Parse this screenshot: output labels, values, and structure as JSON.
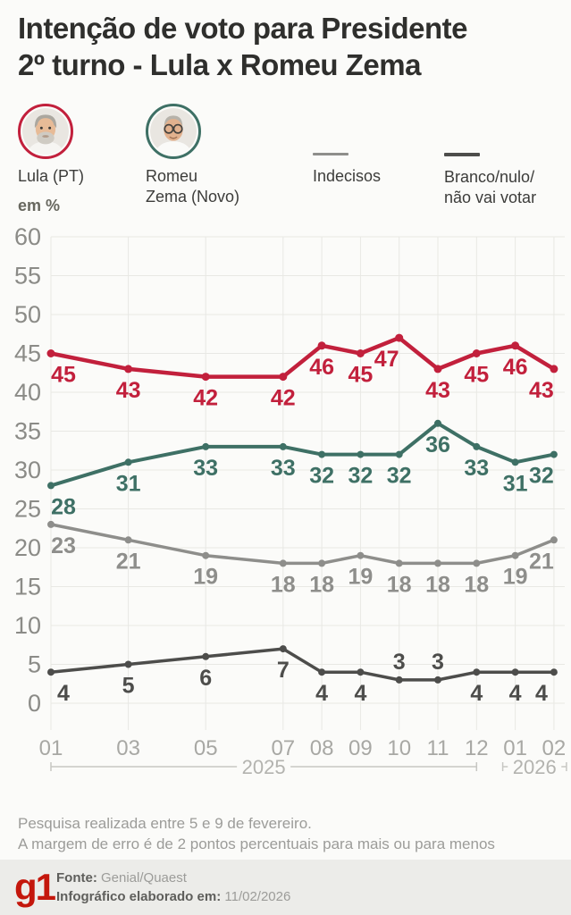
{
  "title": {
    "line1": "Intenção de voto para Presidente",
    "line2": "2º turno - Lula x Romeu Zema"
  },
  "legend": [
    {
      "id": "lula",
      "label": "Lula (PT)",
      "color": "#C2203C",
      "type": "avatar"
    },
    {
      "id": "zema",
      "label": "Romeu Zema (Novo)",
      "label_lines": [
        "Romeu",
        "Zema (Novo)"
      ],
      "color": "#3E7065",
      "type": "avatar"
    },
    {
      "id": "indecisos",
      "label": "Indecisos",
      "color": "#8E8E8B",
      "type": "line"
    },
    {
      "id": "branco",
      "label": "Branco/nulo/não vai votar",
      "label_lines": [
        "Branco/nulo/",
        "não vai votar"
      ],
      "color": "#4D4D4B",
      "type": "line"
    }
  ],
  "unit_label": "em %",
  "chart_data": {
    "type": "line",
    "x_tick_labels": [
      "01",
      "03",
      "05",
      "07",
      "08",
      "09",
      "10",
      "11",
      "12",
      "01",
      "02"
    ],
    "x_month_offsets": [
      0,
      2,
      4,
      6,
      7,
      8,
      9,
      10,
      11,
      12,
      13
    ],
    "y_tick_labels": [
      "0",
      "5",
      "10",
      "15",
      "20",
      "25",
      "30",
      "35",
      "40",
      "45",
      "50",
      "55",
      "60"
    ],
    "ylim": [
      0,
      60
    ],
    "y_tick_step": 5,
    "grid": true,
    "year_spans": [
      {
        "label": "2025",
        "from": 0,
        "to": 8
      },
      {
        "label": "2026",
        "from": 9,
        "to": 10
      }
    ],
    "series": [
      {
        "name": "Lula (PT)",
        "color": "#C2203C",
        "values": [
          45,
          43,
          42,
          42,
          46,
          45,
          47,
          43,
          45,
          46,
          43
        ],
        "label_dx": {
          "6": -14
        }
      },
      {
        "name": "Romeu Zema (Novo)",
        "color": "#3E7065",
        "values": [
          28,
          31,
          33,
          33,
          32,
          32,
          32,
          36,
          33,
          31,
          32
        ]
      },
      {
        "name": "Indecisos",
        "color": "#8E8E8B",
        "values": [
          23,
          21,
          19,
          18,
          18,
          19,
          18,
          18,
          18,
          19,
          21
        ]
      },
      {
        "name": "Branco/nulo/não vai votar",
        "color": "#4D4D4B",
        "values": [
          4,
          5,
          6,
          7,
          4,
          4,
          3,
          3,
          4,
          4,
          4
        ],
        "labels_above_idx": [
          6,
          7
        ]
      }
    ]
  },
  "footnote": {
    "line1": "Pesquisa realizada entre 5 e 9 de fevereiro.",
    "line2": "A margem de erro é de 2 pontos percentuais para mais ou para menos"
  },
  "footer": {
    "logo": "g1",
    "logo_color": "#C4170C",
    "source_label": "Fonte:",
    "source_value": "Genial/Quaest",
    "made_label": "Infográfico elaborado em:",
    "made_value": "11/02/2026"
  }
}
